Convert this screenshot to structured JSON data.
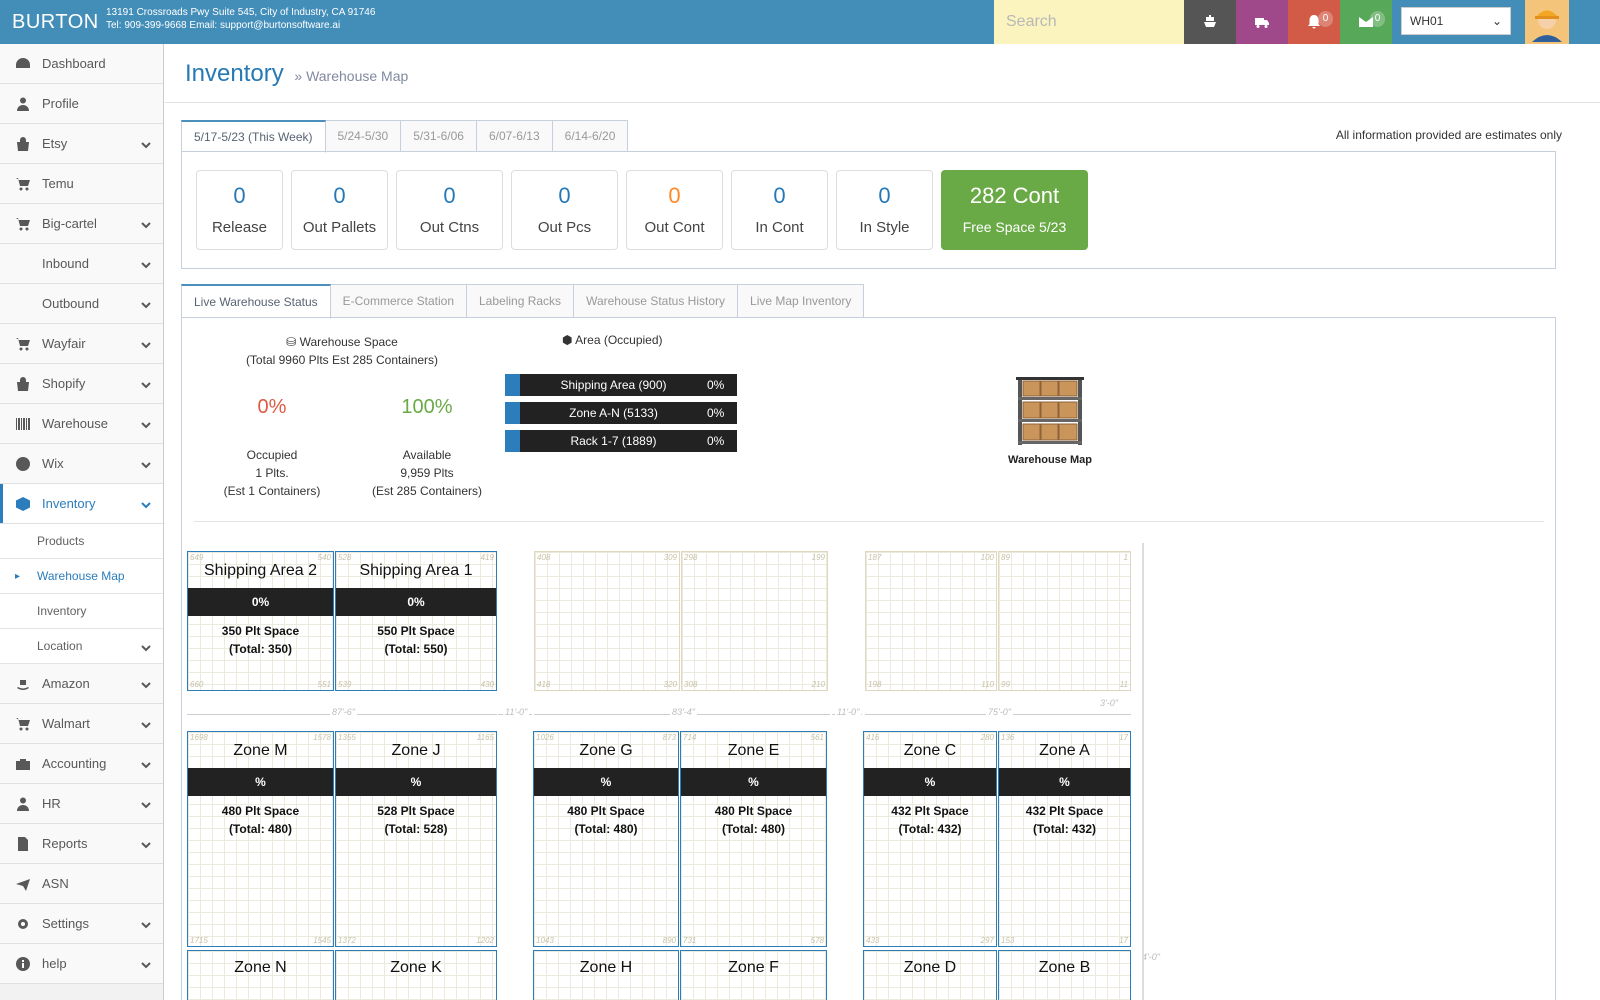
{
  "header": {
    "brand": "BURTON",
    "address": "13191 Crossroads Pwy Suite 545, City of Industry, CA 91746",
    "contact": "Tel: 909-399-9668 Email: support@burtonsoftware.ai",
    "search_placeholder": "Search",
    "notifications_count": "0",
    "messages_count": "0",
    "warehouse_selected": "WH01"
  },
  "sidebar": {
    "items": [
      {
        "label": "Dashboard",
        "icon": "dashboard-icon"
      },
      {
        "label": "Profile",
        "icon": "user-icon"
      },
      {
        "label": "Etsy",
        "icon": "shopping-bag-icon"
      },
      {
        "label": "Temu",
        "icon": "cart-icon"
      },
      {
        "label": "Big-cartel",
        "icon": "cart-icon"
      },
      {
        "label": "Inbound",
        "icon": "compress-icon"
      },
      {
        "label": "Outbound",
        "icon": "expand-icon"
      },
      {
        "label": "Wayfair",
        "icon": "cart-icon"
      },
      {
        "label": "Shopify",
        "icon": "shopping-bag-icon"
      },
      {
        "label": "Warehouse",
        "icon": "barcode-icon"
      },
      {
        "label": "Wix",
        "icon": "globe-icon"
      },
      {
        "label": "Inventory",
        "icon": "cube-icon"
      },
      {
        "label": "Amazon",
        "icon": "amazon-icon"
      },
      {
        "label": "Walmart",
        "icon": "cart-icon"
      },
      {
        "label": "Accounting",
        "icon": "briefcase-icon"
      },
      {
        "label": "HR",
        "icon": "user-icon"
      },
      {
        "label": "Reports",
        "icon": "file-icon"
      },
      {
        "label": "ASN",
        "icon": "plane-icon"
      },
      {
        "label": "Settings",
        "icon": "gear-icon"
      },
      {
        "label": "help",
        "icon": "info-icon"
      }
    ],
    "inventory_sub": [
      {
        "label": "Products"
      },
      {
        "label": "Warehouse Map"
      },
      {
        "label": "Inventory"
      },
      {
        "label": "Location"
      }
    ]
  },
  "page": {
    "title": "Inventory",
    "subtitle": "» Warehouse Map",
    "note": "All information provided are estimates only"
  },
  "week_tabs": [
    "5/17-5/23 (This Week)",
    "5/24-5/30",
    "5/31-6/06",
    "6/07-6/13",
    "6/14-6/20"
  ],
  "stats": [
    {
      "value": "0",
      "label": "Release"
    },
    {
      "value": "0",
      "label": "Out Pallets"
    },
    {
      "value": "0",
      "label": "Out Ctns"
    },
    {
      "value": "0",
      "label": "Out Pcs"
    },
    {
      "value": "0",
      "label": "Out Cont"
    },
    {
      "value": "0",
      "label": "In Cont"
    },
    {
      "value": "0",
      "label": "In Style"
    },
    {
      "value": "282 Cont",
      "label": "Free Space 5/23"
    }
  ],
  "status_tabs": [
    "Live Warehouse Status",
    "E-Commerce Station",
    "Labeling Racks",
    "Warehouse Status History",
    "Live Map Inventory"
  ],
  "warehouse_space": {
    "title": "Warehouse Space",
    "subtitle": "(Total 9960 Plts Est 285 Containers)",
    "occupied_pct": "0%",
    "available_pct": "100%",
    "occupied_label": "Occupied",
    "occupied_plts": "1 Plts.",
    "occupied_est": "(Est 1 Containers)",
    "available_label": "Available",
    "available_plts": "9,959 Plts",
    "available_est": "(Est 285 Containers)"
  },
  "area": {
    "title": "Area (Occupied)",
    "bars": [
      {
        "label": "Shipping Area (900)",
        "pct": "0%"
      },
      {
        "label": "Zone A-N (5133)",
        "pct": "0%"
      },
      {
        "label": "Rack 1-7 (1889)",
        "pct": "0%"
      }
    ]
  },
  "map_thumb_caption": "Warehouse Map",
  "zones": [
    {
      "name": "Shipping Area 2",
      "pct": "0%",
      "space": "350 Plt Space",
      "total": "(Total: 350)",
      "corners": [
        "649",
        "540",
        "660",
        "551"
      ]
    },
    {
      "name": "Shipping Area 1",
      "pct": "0%",
      "space": "550 Plt Space",
      "total": "(Total: 550)",
      "corners": [
        "528",
        "419",
        "539",
        "430"
      ]
    },
    {
      "name": "Zone M",
      "pct": "%",
      "space": "480 Plt Space",
      "total": "(Total: 480)",
      "corners": [
        "1698",
        "1578",
        "1715",
        "1545"
      ]
    },
    {
      "name": "Zone J",
      "pct": "%",
      "space": "528 Plt Space",
      "total": "(Total: 528)",
      "corners": [
        "1355",
        "1165",
        "1372",
        "1202"
      ]
    },
    {
      "name": "Zone G",
      "pct": "%",
      "space": "480 Plt Space",
      "total": "(Total: 480)",
      "corners": [
        "1026",
        "873",
        "1043",
        "890"
      ]
    },
    {
      "name": "Zone E",
      "pct": "%",
      "space": "480 Plt Space",
      "total": "(Total: 480)",
      "corners": [
        "714",
        "561",
        "731",
        "578"
      ]
    },
    {
      "name": "Zone C",
      "pct": "%",
      "space": "432 Plt Space",
      "total": "(Total: 432)",
      "corners": [
        "416",
        "280",
        "433",
        "297"
      ]
    },
    {
      "name": "Zone A",
      "pct": "%",
      "space": "432 Plt Space",
      "total": "(Total: 432)",
      "corners": [
        "136",
        "17",
        "153",
        "17"
      ]
    }
  ],
  "ghost_zones": [
    {
      "corners": [
        "408",
        "309",
        "418",
        "320"
      ]
    },
    {
      "corners": [
        "298",
        "199",
        "308",
        "210"
      ]
    },
    {
      "corners": [
        "187",
        "100",
        "198",
        "110"
      ]
    },
    {
      "corners": [
        "89",
        "1",
        "99",
        "11"
      ]
    }
  ],
  "bottom_zones": [
    "Zone N",
    "Zone K",
    "Zone H",
    "Zone F",
    "Zone D",
    "Zone B"
  ],
  "dimensions": [
    "87'-6\"",
    "11'-0\"",
    "83'-4\"",
    "11'-0\"",
    "75'-0\"",
    "3'-0\"",
    "4'-0\""
  ]
}
